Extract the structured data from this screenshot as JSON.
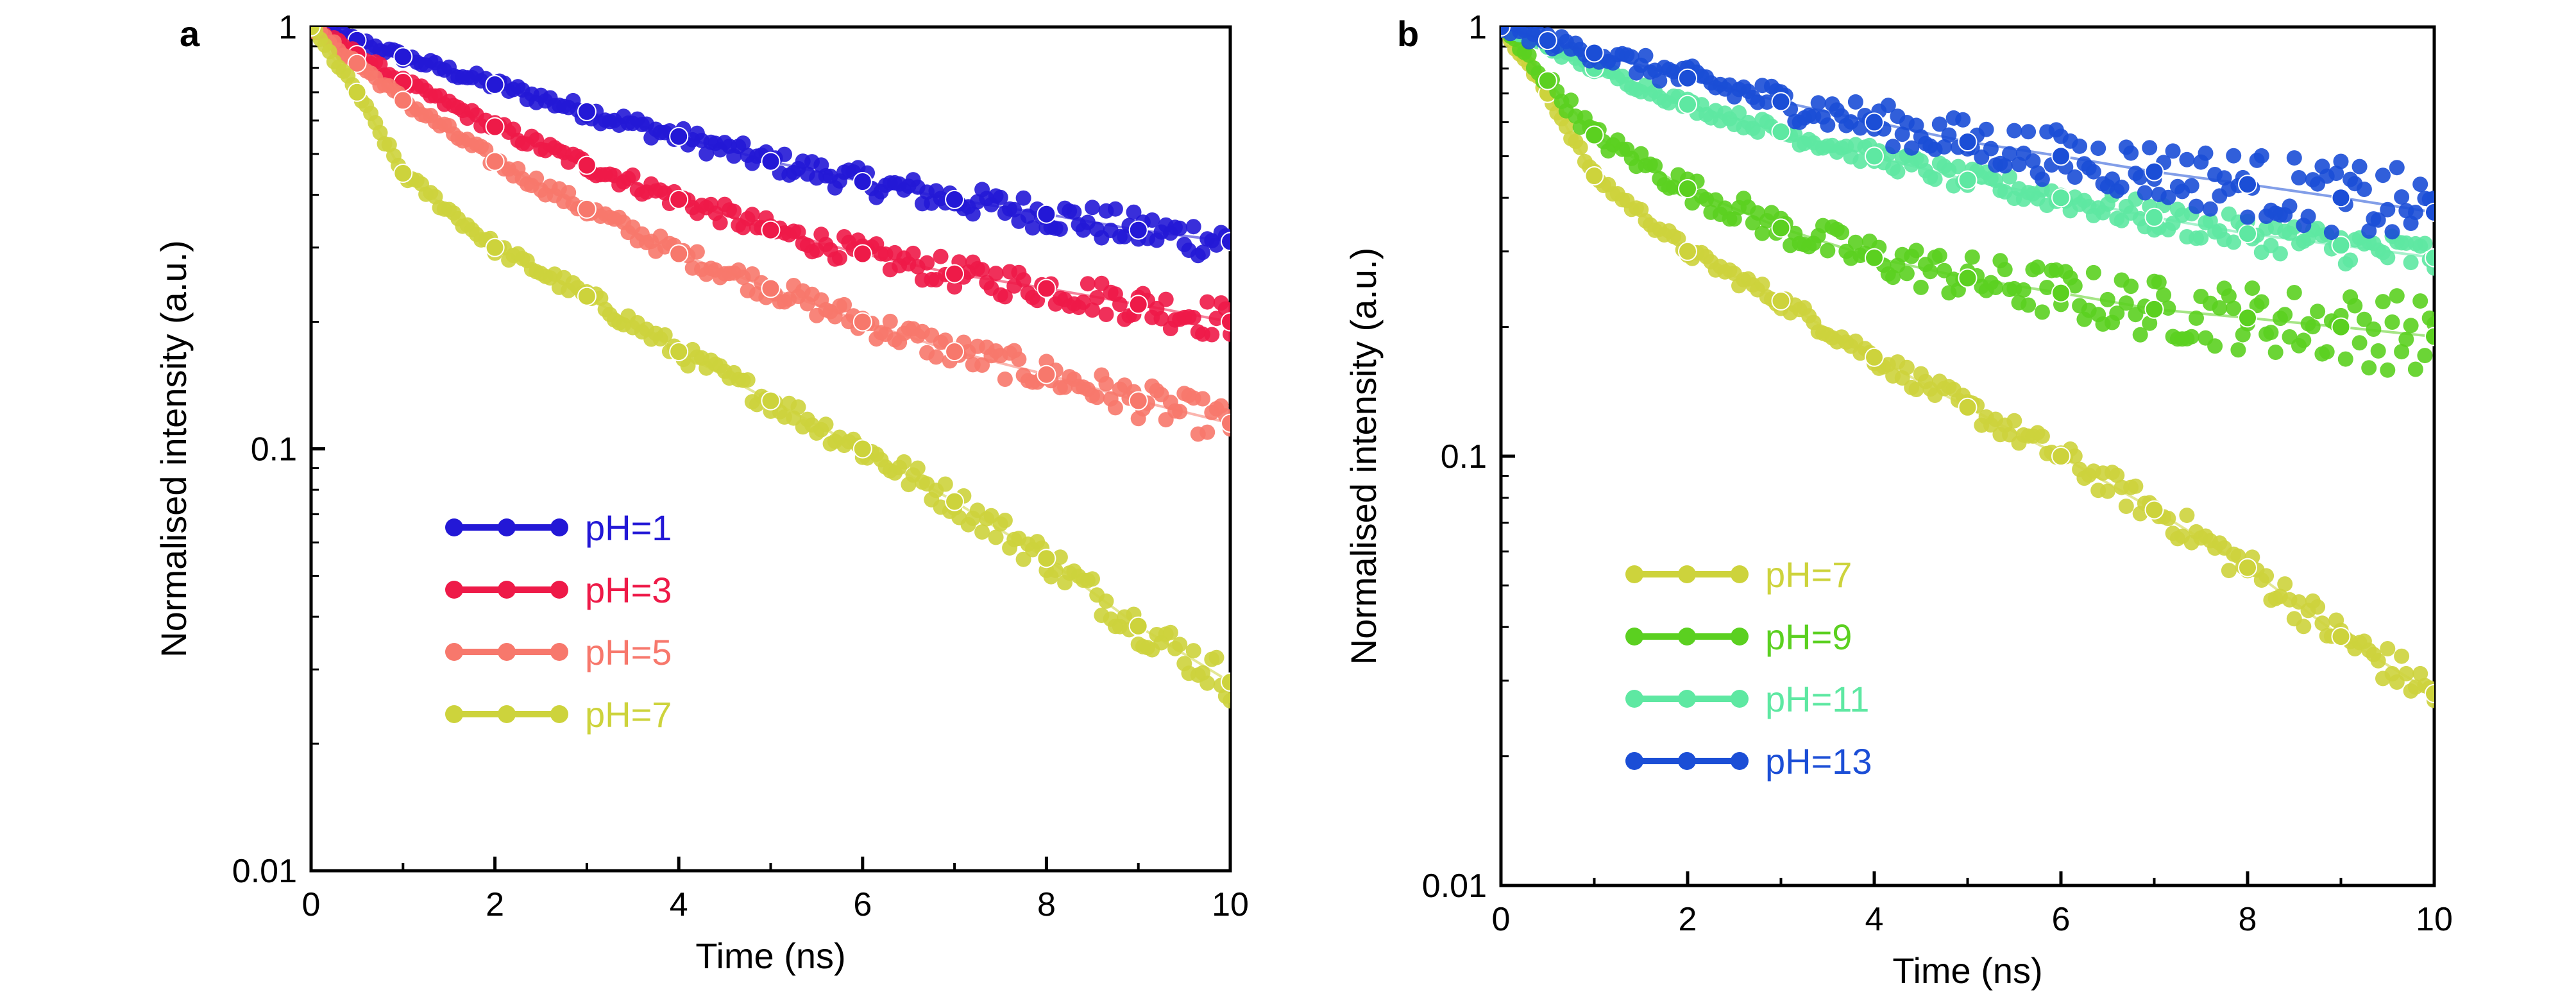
{
  "chart_data": [
    {
      "type": "scatter",
      "panel_label": "a",
      "xlabel": "Time (ns)",
      "ylabel": "Normalised intensity (a.u.)",
      "xlim": [
        0,
        10
      ],
      "ylim": [
        0.01,
        1
      ],
      "yscale": "log",
      "xticks": [
        "0",
        "2",
        "4",
        "6",
        "8",
        "10"
      ],
      "yticks": [
        "1",
        "0.1",
        "0.01"
      ],
      "grid": false,
      "legend_position": "lower-left",
      "series": [
        {
          "name": "pH=1",
          "color": "#2318d6",
          "x": [
            0,
            0.5,
            1,
            2,
            3,
            4,
            5,
            6,
            7,
            8,
            9,
            10
          ],
          "y": [
            1.0,
            0.93,
            0.85,
            0.73,
            0.63,
            0.55,
            0.48,
            0.43,
            0.39,
            0.36,
            0.33,
            0.31
          ]
        },
        {
          "name": "pH=3",
          "color": "#ee1a48",
          "x": [
            0,
            0.5,
            1,
            2,
            3,
            4,
            5,
            6,
            7,
            8,
            9,
            10
          ],
          "y": [
            1.0,
            0.86,
            0.74,
            0.58,
            0.47,
            0.39,
            0.33,
            0.29,
            0.26,
            0.24,
            0.22,
            0.2
          ]
        },
        {
          "name": "pH=5",
          "color": "#f7786c",
          "x": [
            0,
            0.5,
            1,
            2,
            3,
            4,
            5,
            6,
            7,
            8,
            9,
            10
          ],
          "y": [
            1.0,
            0.82,
            0.67,
            0.48,
            0.37,
            0.29,
            0.24,
            0.2,
            0.17,
            0.15,
            0.13,
            0.115
          ]
        },
        {
          "name": "pH=7",
          "color": "#cdd33c",
          "x": [
            0,
            0.5,
            1,
            2,
            3,
            4,
            5,
            6,
            7,
            8,
            9,
            10
          ],
          "y": [
            1.0,
            0.7,
            0.45,
            0.3,
            0.23,
            0.17,
            0.13,
            0.1,
            0.075,
            0.055,
            0.038,
            0.028
          ]
        }
      ]
    },
    {
      "type": "scatter",
      "panel_label": "b",
      "xlabel": "Time (ns)",
      "ylabel": "Normalised intensity (a.u.)",
      "xlim": [
        0,
        10
      ],
      "ylim": [
        0.01,
        1
      ],
      "yscale": "log",
      "xticks": [
        "0",
        "2",
        "4",
        "6",
        "8",
        "10"
      ],
      "yticks": [
        "1",
        "0.1",
        "0.01"
      ],
      "grid": false,
      "legend_position": "lower-left",
      "series": [
        {
          "name": "pH=7",
          "color": "#cdd33c",
          "x": [
            0,
            0.5,
            1,
            2,
            3,
            4,
            5,
            6,
            7,
            8,
            9,
            10
          ],
          "y": [
            1.0,
            0.7,
            0.45,
            0.3,
            0.23,
            0.17,
            0.13,
            0.1,
            0.075,
            0.055,
            0.038,
            0.028
          ]
        },
        {
          "name": "pH=9",
          "color": "#5bd020",
          "x": [
            0,
            0.5,
            1,
            2,
            3,
            4,
            5,
            6,
            7,
            8,
            9,
            10
          ],
          "y": [
            1.0,
            0.75,
            0.56,
            0.42,
            0.34,
            0.29,
            0.26,
            0.24,
            0.22,
            0.21,
            0.2,
            0.19
          ]
        },
        {
          "name": "pH=11",
          "color": "#5ee8a2",
          "x": [
            0,
            0.5,
            1,
            2,
            3,
            4,
            5,
            6,
            7,
            8,
            9,
            10
          ],
          "y": [
            1.0,
            0.9,
            0.8,
            0.66,
            0.57,
            0.5,
            0.44,
            0.4,
            0.36,
            0.33,
            0.31,
            0.29
          ]
        },
        {
          "name": "pH=13",
          "color": "#1b4ed6",
          "x": [
            0,
            0.5,
            1,
            2,
            3,
            4,
            5,
            6,
            7,
            8,
            9,
            10
          ],
          "y": [
            1.0,
            0.93,
            0.87,
            0.76,
            0.67,
            0.6,
            0.54,
            0.5,
            0.46,
            0.43,
            0.4,
            0.37
          ]
        }
      ]
    }
  ]
}
